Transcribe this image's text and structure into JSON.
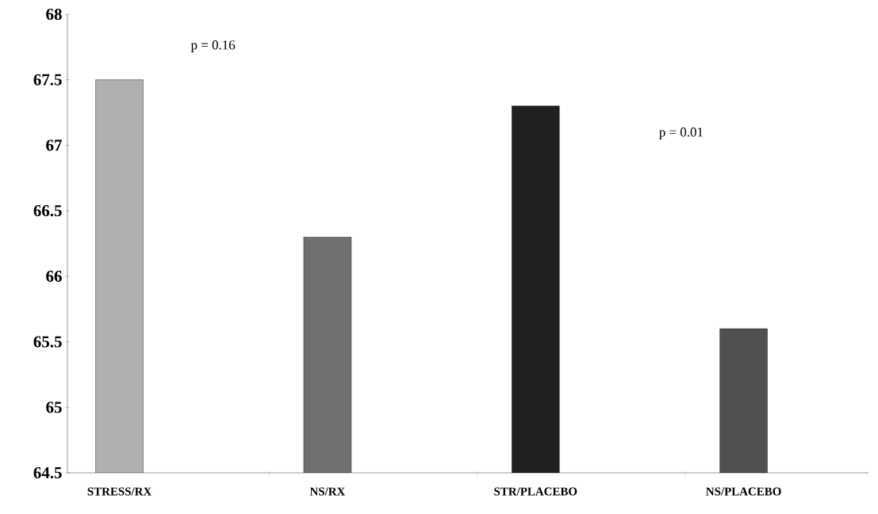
{
  "chart_data": {
    "type": "bar",
    "categories": [
      "STRESS/RX",
      "NS/RX",
      "STR/PLACEBO",
      "NS/PLACEBO"
    ],
    "values": [
      67.5,
      66.3,
      67.3,
      65.6
    ],
    "colors": [
      "#b0b0b0",
      "#707070",
      "#202020",
      "#505050"
    ],
    "ylim": [
      64.5,
      68
    ],
    "yticks": [
      64.5,
      65,
      65.5,
      66,
      66.5,
      67,
      67.5,
      68
    ],
    "annotations": [
      "p = 0.16",
      "p = 0.01"
    ]
  }
}
